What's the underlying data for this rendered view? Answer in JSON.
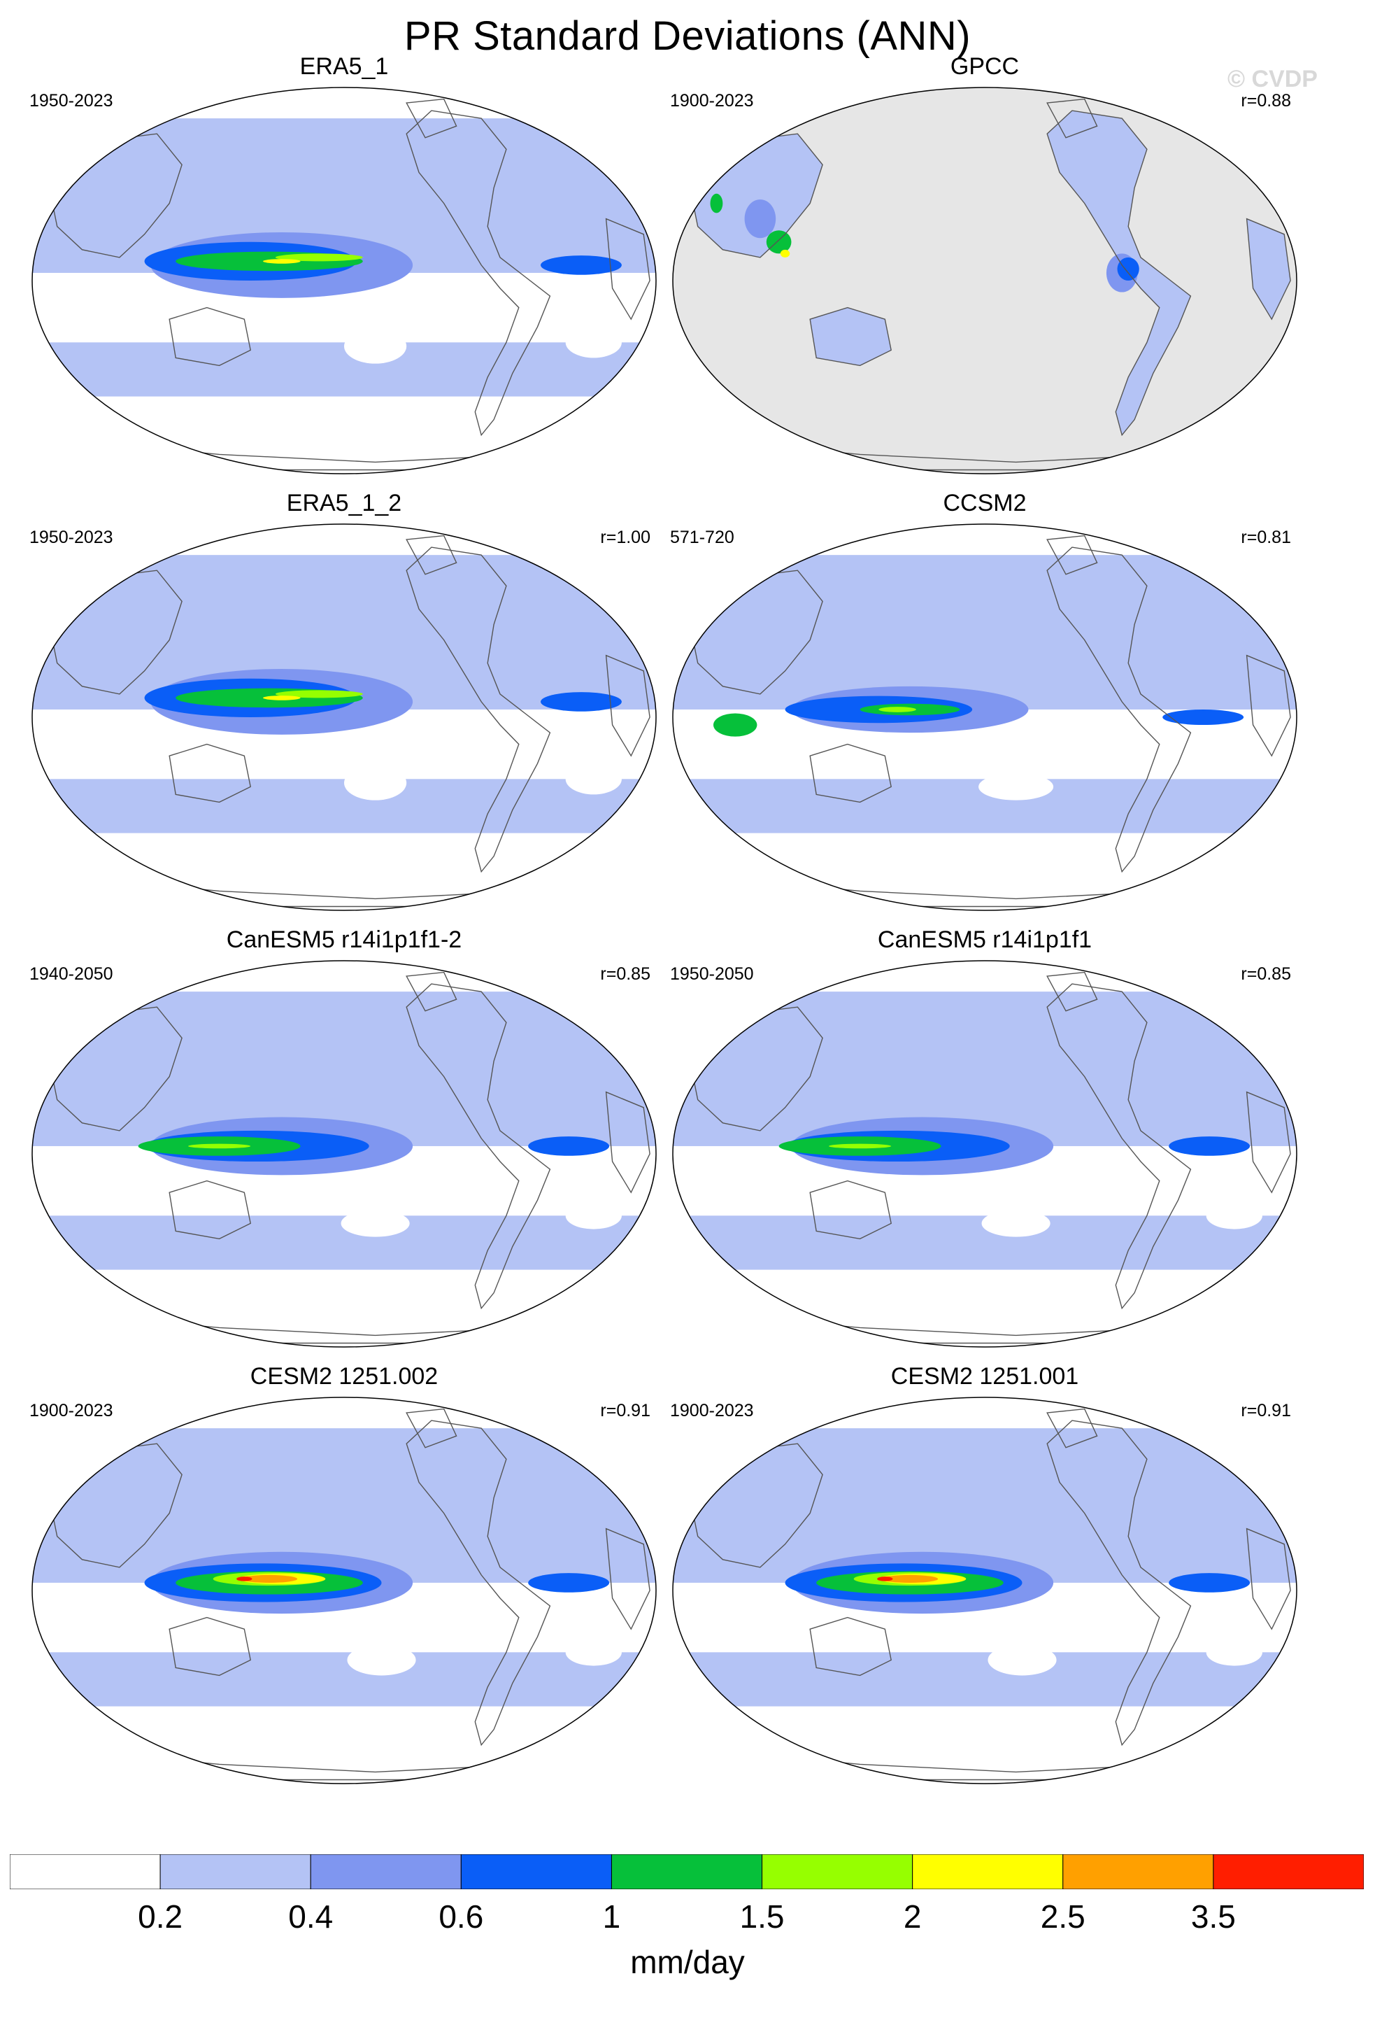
{
  "title": "PR Standard Deviations (ANN)",
  "watermark": "© CVDP",
  "colors": {
    "levels": [
      "#ffffff",
      "#b4c3f5",
      "#7f96f0",
      "#0a5ef7",
      "#06c03a",
      "#96ff00",
      "#ffff00",
      "#ffa000",
      "#ff1e00"
    ],
    "missing": "#e6e6e6",
    "coast": "#555555"
  },
  "panels": [
    {
      "title": "ERA5_1",
      "period": "1950-2023",
      "r": "",
      "pattern": "era",
      "missing_ocean": false
    },
    {
      "title": "GPCC",
      "period": "1900-2023",
      "r": "r=0.88",
      "pattern": "gpcc",
      "missing_ocean": true
    },
    {
      "title": "ERA5_1_2",
      "period": "1950-2023",
      "r": "r=1.00",
      "pattern": "era",
      "missing_ocean": false
    },
    {
      "title": "CCSM2",
      "period": "571-720",
      "r": "r=0.81",
      "pattern": "ccsm",
      "missing_ocean": false
    },
    {
      "title": "CanESM5 r14i1p1f1-2",
      "period": "1940-2050",
      "r": "r=0.85",
      "pattern": "can",
      "missing_ocean": false
    },
    {
      "title": "CanESM5 r14i1p1f1",
      "period": "1950-2050",
      "r": "r=0.85",
      "pattern": "can",
      "missing_ocean": false
    },
    {
      "title": "CESM2 1251.002",
      "period": "1900-2023",
      "r": "r=0.91",
      "pattern": "cesm",
      "missing_ocean": false
    },
    {
      "title": "CESM2 1251.001",
      "period": "1900-2023",
      "r": "r=0.91",
      "pattern": "cesm",
      "missing_ocean": false
    }
  ],
  "colorbar": {
    "ticks": [
      "0.2",
      "0.4",
      "0.6",
      "1",
      "1.5",
      "2",
      "2.5",
      "3.5"
    ],
    "units": "mm/day"
  }
}
